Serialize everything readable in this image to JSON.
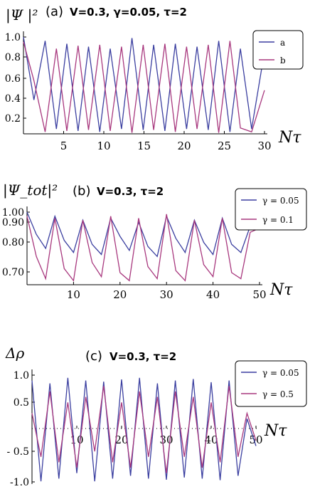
{
  "chart_data": [
    {
      "type": "line",
      "panel_label": "(a)",
      "params": "V=0.3, γ=0.05, τ=2",
      "ylabel": "|Ψ |²",
      "xlabel": "Nτ",
      "xlim": [
        0,
        30
      ],
      "ylim": [
        0,
        1.0
      ],
      "xticks": [
        "5",
        "10",
        "15",
        "20",
        "25",
        "30"
      ],
      "yticks": [
        "0.2",
        "0.4",
        "0.6",
        "0.8",
        "1.0"
      ],
      "legend_position": "top-right",
      "colors": {
        "a": "#3b3fa0",
        "b": "#a8387e"
      },
      "series": [
        {
          "name": "a",
          "color": "#3b3fa0",
          "x": [
            0,
            1.3,
            2.7,
            4.1,
            5.4,
            6.8,
            8.1,
            9.5,
            10.8,
            12.2,
            13.5,
            14.9,
            16.2,
            17.6,
            18.9,
            20.3,
            21.6,
            23.0,
            24.3,
            25.7,
            27.0,
            28.4,
            30.0
          ],
          "y": [
            1.0,
            0.35,
            0.96,
            0.05,
            0.93,
            0.03,
            0.9,
            0.02,
            0.88,
            0.05,
            0.99,
            0.04,
            0.92,
            0.03,
            0.93,
            0.05,
            0.9,
            0.04,
            0.96,
            0.02,
            0.88,
            0.05,
            0.85
          ]
        },
        {
          "name": "b",
          "color": "#a8387e",
          "x": [
            0,
            1.3,
            2.7,
            4.1,
            5.4,
            6.8,
            8.1,
            9.5,
            10.8,
            12.2,
            13.5,
            14.9,
            16.2,
            17.6,
            18.9,
            20.3,
            21.6,
            23.0,
            24.3,
            25.7,
            27.0,
            28.4,
            30.0
          ],
          "y": [
            0.95,
            0.55,
            0.02,
            0.88,
            0.03,
            0.91,
            0.04,
            0.92,
            0.03,
            0.9,
            0.01,
            0.92,
            0.04,
            0.93,
            0.02,
            0.9,
            0.05,
            0.92,
            0.01,
            0.96,
            0.06,
            0.02,
            0.45
          ]
        }
      ]
    },
    {
      "type": "line",
      "panel_label": "(b)",
      "params": "V=0.3, τ=2",
      "ylabel": "|Ψ_tot|²",
      "xlabel": "Nτ",
      "xlim": [
        0,
        50
      ],
      "ylim": [
        0.64,
        1.0
      ],
      "xticks": [
        "10",
        "20",
        "30",
        "40",
        "50"
      ],
      "yticks": [
        "0.70",
        "0.80",
        "0.90",
        "1.00"
      ],
      "legend_position": "top-right",
      "series": [
        {
          "name": "γ = 0.05",
          "color": "#3b3fa0",
          "x": [
            0,
            2,
            4,
            6,
            8,
            10,
            12,
            14,
            16,
            18,
            20,
            22,
            24,
            26,
            28,
            30,
            32,
            34,
            36,
            38,
            40,
            42,
            44,
            46,
            48,
            50
          ],
          "y": [
            1.0,
            0.89,
            0.82,
            0.98,
            0.86,
            0.8,
            0.96,
            0.84,
            0.79,
            0.97,
            0.88,
            0.81,
            0.95,
            0.83,
            0.78,
            0.98,
            0.87,
            0.8,
            0.96,
            0.85,
            0.79,
            0.97,
            0.84,
            0.8,
            0.93,
            0.92
          ]
        },
        {
          "name": "γ = 0.1",
          "color": "#a8387e",
          "x": [
            0,
            2,
            4,
            6,
            8,
            10,
            12,
            14,
            16,
            18,
            20,
            22,
            24,
            26,
            28,
            30,
            32,
            34,
            36,
            38,
            40,
            42,
            44,
            46,
            48,
            50
          ],
          "y": [
            0.98,
            0.78,
            0.67,
            0.97,
            0.72,
            0.66,
            0.96,
            0.75,
            0.68,
            0.98,
            0.7,
            0.66,
            0.97,
            0.73,
            0.67,
            0.99,
            0.71,
            0.66,
            0.96,
            0.74,
            0.68,
            0.97,
            0.7,
            0.67,
            0.9,
            0.92
          ]
        }
      ]
    },
    {
      "type": "line",
      "panel_label": "(c)",
      "params": "V=0.3, τ=2",
      "ylabel": "Δρ",
      "xlabel": "Nτ",
      "xlim": [
        0,
        50
      ],
      "ylim": [
        -1.0,
        1.0
      ],
      "xticks": [
        "10",
        "20",
        "30",
        "40",
        "50"
      ],
      "yticks": [
        "-1.0",
        "- 0.5",
        "0.5",
        "1.0"
      ],
      "legend_position": "top-right",
      "series": [
        {
          "name": "γ = 0.05",
          "color": "#3b3fa0",
          "x": [
            0,
            2,
            4,
            6,
            8,
            10,
            12,
            14,
            16,
            18,
            20,
            22,
            24,
            26,
            28,
            30,
            32,
            34,
            36,
            38,
            40,
            42,
            44,
            46,
            48,
            50
          ],
          "y": [
            0.9,
            -0.95,
            0.85,
            -0.9,
            0.95,
            -0.8,
            0.9,
            -0.95,
            0.88,
            -0.9,
            0.92,
            -0.85,
            0.95,
            -0.9,
            0.85,
            -0.92,
            0.9,
            -0.88,
            0.93,
            -0.9,
            0.87,
            -0.93,
            0.9,
            -0.85,
            0.2,
            -0.3
          ]
        },
        {
          "name": "γ = 0.5",
          "color": "#a8387e",
          "x": [
            0,
            2,
            4,
            6,
            8,
            10,
            12,
            14,
            16,
            18,
            20,
            22,
            24,
            26,
            28,
            30,
            32,
            34,
            36,
            38,
            40,
            42,
            44,
            46,
            48,
            50
          ],
          "y": [
            0.3,
            -0.5,
            0.7,
            -0.6,
            0.5,
            -0.7,
            0.6,
            -0.4,
            0.8,
            -0.6,
            0.5,
            -0.7,
            0.7,
            -0.5,
            0.6,
            -0.8,
            0.7,
            -0.5,
            0.6,
            -0.7,
            0.5,
            -0.6,
            0.8,
            -0.5,
            0.3,
            -0.2
          ]
        }
      ]
    }
  ]
}
